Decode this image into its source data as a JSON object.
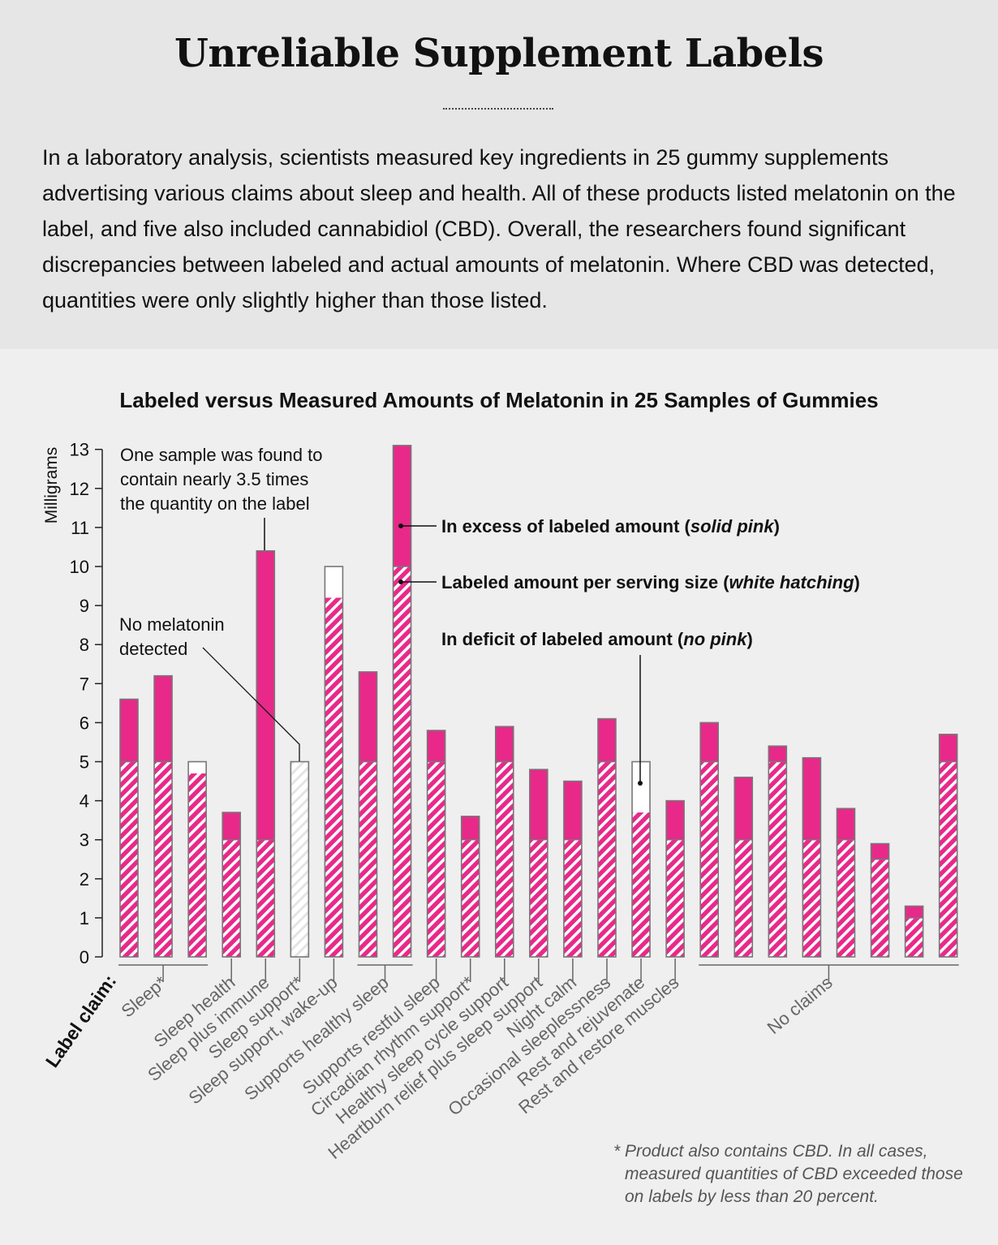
{
  "header": {
    "title": "Unreliable Supplement Labels",
    "intro": "In a laboratory analysis, scientists measured key ingredients in 25 gummy supplements advertising various claims about sleep and health. All of these products listed melatonin on the label, and five also included cannabidiol (CBD). Overall, the researchers found significant discrepancies between labeled and actual amounts of melatonin. Where CBD was detected, quantities were only slightly higher than those listed."
  },
  "colors": {
    "pink": "#e8298a",
    "hatch_bg": "#ffffff",
    "outline": "#777777",
    "header_bg": "#e6e6e6",
    "chart_bg": "#efefef",
    "group_label": "#666666"
  },
  "chart_data": {
    "type": "bar",
    "title": "Labeled versus Measured Amounts of Melatonin in 25 Samples of Gummies",
    "ylabel": "Milligrams",
    "xlabel": "Label claim:",
    "ylim": [
      0,
      13
    ],
    "yticks": [
      "0",
      "1",
      "2",
      "3",
      "4",
      "5",
      "6",
      "7",
      "8",
      "9",
      "10",
      "11",
      "12",
      "13"
    ],
    "samples": [
      {
        "labeled": 5,
        "measured": 6.6
      },
      {
        "labeled": 5,
        "measured": 7.2
      },
      {
        "labeled": 5,
        "measured": 4.7
      },
      {
        "labeled": 3,
        "measured": 3.7
      },
      {
        "labeled": 3,
        "measured": 10.4
      },
      {
        "labeled": 5,
        "measured": 0
      },
      {
        "labeled": 10,
        "measured": 9.2
      },
      {
        "labeled": 5,
        "measured": 7.3
      },
      {
        "labeled": 10,
        "measured": 13.1
      },
      {
        "labeled": 5,
        "measured": 5.8
      },
      {
        "labeled": 3,
        "measured": 3.6
      },
      {
        "labeled": 5,
        "measured": 5.9
      },
      {
        "labeled": 3,
        "measured": 4.8
      },
      {
        "labeled": 3,
        "measured": 4.5
      },
      {
        "labeled": 5,
        "measured": 6.1
      },
      {
        "labeled": 5,
        "measured": 3.7
      },
      {
        "labeled": 3,
        "measured": 4.0
      },
      {
        "labeled": 5,
        "measured": 6.0
      },
      {
        "labeled": 3,
        "measured": 4.6
      },
      {
        "labeled": 5,
        "measured": 5.4
      },
      {
        "labeled": 3,
        "measured": 5.1
      },
      {
        "labeled": 3,
        "measured": 3.8
      },
      {
        "labeled": 2.5,
        "measured": 2.9
      },
      {
        "labeled": 1,
        "measured": 1.3
      },
      {
        "labeled": 5,
        "measured": 5.7
      }
    ],
    "groups": [
      {
        "label": "Sleep*",
        "start": 0,
        "end": 2,
        "bracket": true
      },
      {
        "label": "Sleep health",
        "start": 3,
        "end": 3,
        "bracket": false
      },
      {
        "label": "Sleep plus immune",
        "start": 4,
        "end": 4,
        "bracket": false
      },
      {
        "label": "Sleep support*",
        "start": 5,
        "end": 5,
        "bracket": false
      },
      {
        "label": "Sleep support, wake-up",
        "start": 6,
        "end": 6,
        "bracket": false
      },
      {
        "label": "Supports healthy sleep",
        "start": 7,
        "end": 8,
        "bracket": true
      },
      {
        "label": "Supports restful sleep",
        "start": 9,
        "end": 9,
        "bracket": false
      },
      {
        "label": "Circadian rhythm support*",
        "start": 10,
        "end": 10,
        "bracket": false
      },
      {
        "label": "Healthy sleep cycle support",
        "start": 11,
        "end": 11,
        "bracket": false
      },
      {
        "label": "Heartburn relief plus sleep support",
        "start": 12,
        "end": 12,
        "bracket": false
      },
      {
        "label": "Night calm",
        "start": 13,
        "end": 13,
        "bracket": false
      },
      {
        "label": "Occasional sleeplessness",
        "start": 14,
        "end": 14,
        "bracket": false
      },
      {
        "label": "Rest and rejuvenate",
        "start": 15,
        "end": 15,
        "bracket": false
      },
      {
        "label": "Rest and restore muscles",
        "start": 16,
        "end": 16,
        "bracket": false
      },
      {
        "label": "No claims",
        "start": 17,
        "end": 24,
        "bracket": true
      }
    ],
    "annotations": {
      "high_sample": "One sample was found to contain nearly 3.5 times the quantity on the label",
      "none_detected": "No melatonin detected",
      "excess": {
        "pre": "In excess of labeled amount (",
        "em": "solid pink",
        "post": ")"
      },
      "labeled": {
        "pre": "Labeled amount per serving size (",
        "em": "white hatching",
        "post": ")"
      },
      "deficit": {
        "pre": "In deficit of labeled amount (",
        "em": "no pink",
        "post": ")"
      }
    }
  },
  "footnote": {
    "star": "*",
    "text": "Product also contains CBD. In all cases, measured quantities of CBD exceeded those on labels by less than 20 percent."
  }
}
